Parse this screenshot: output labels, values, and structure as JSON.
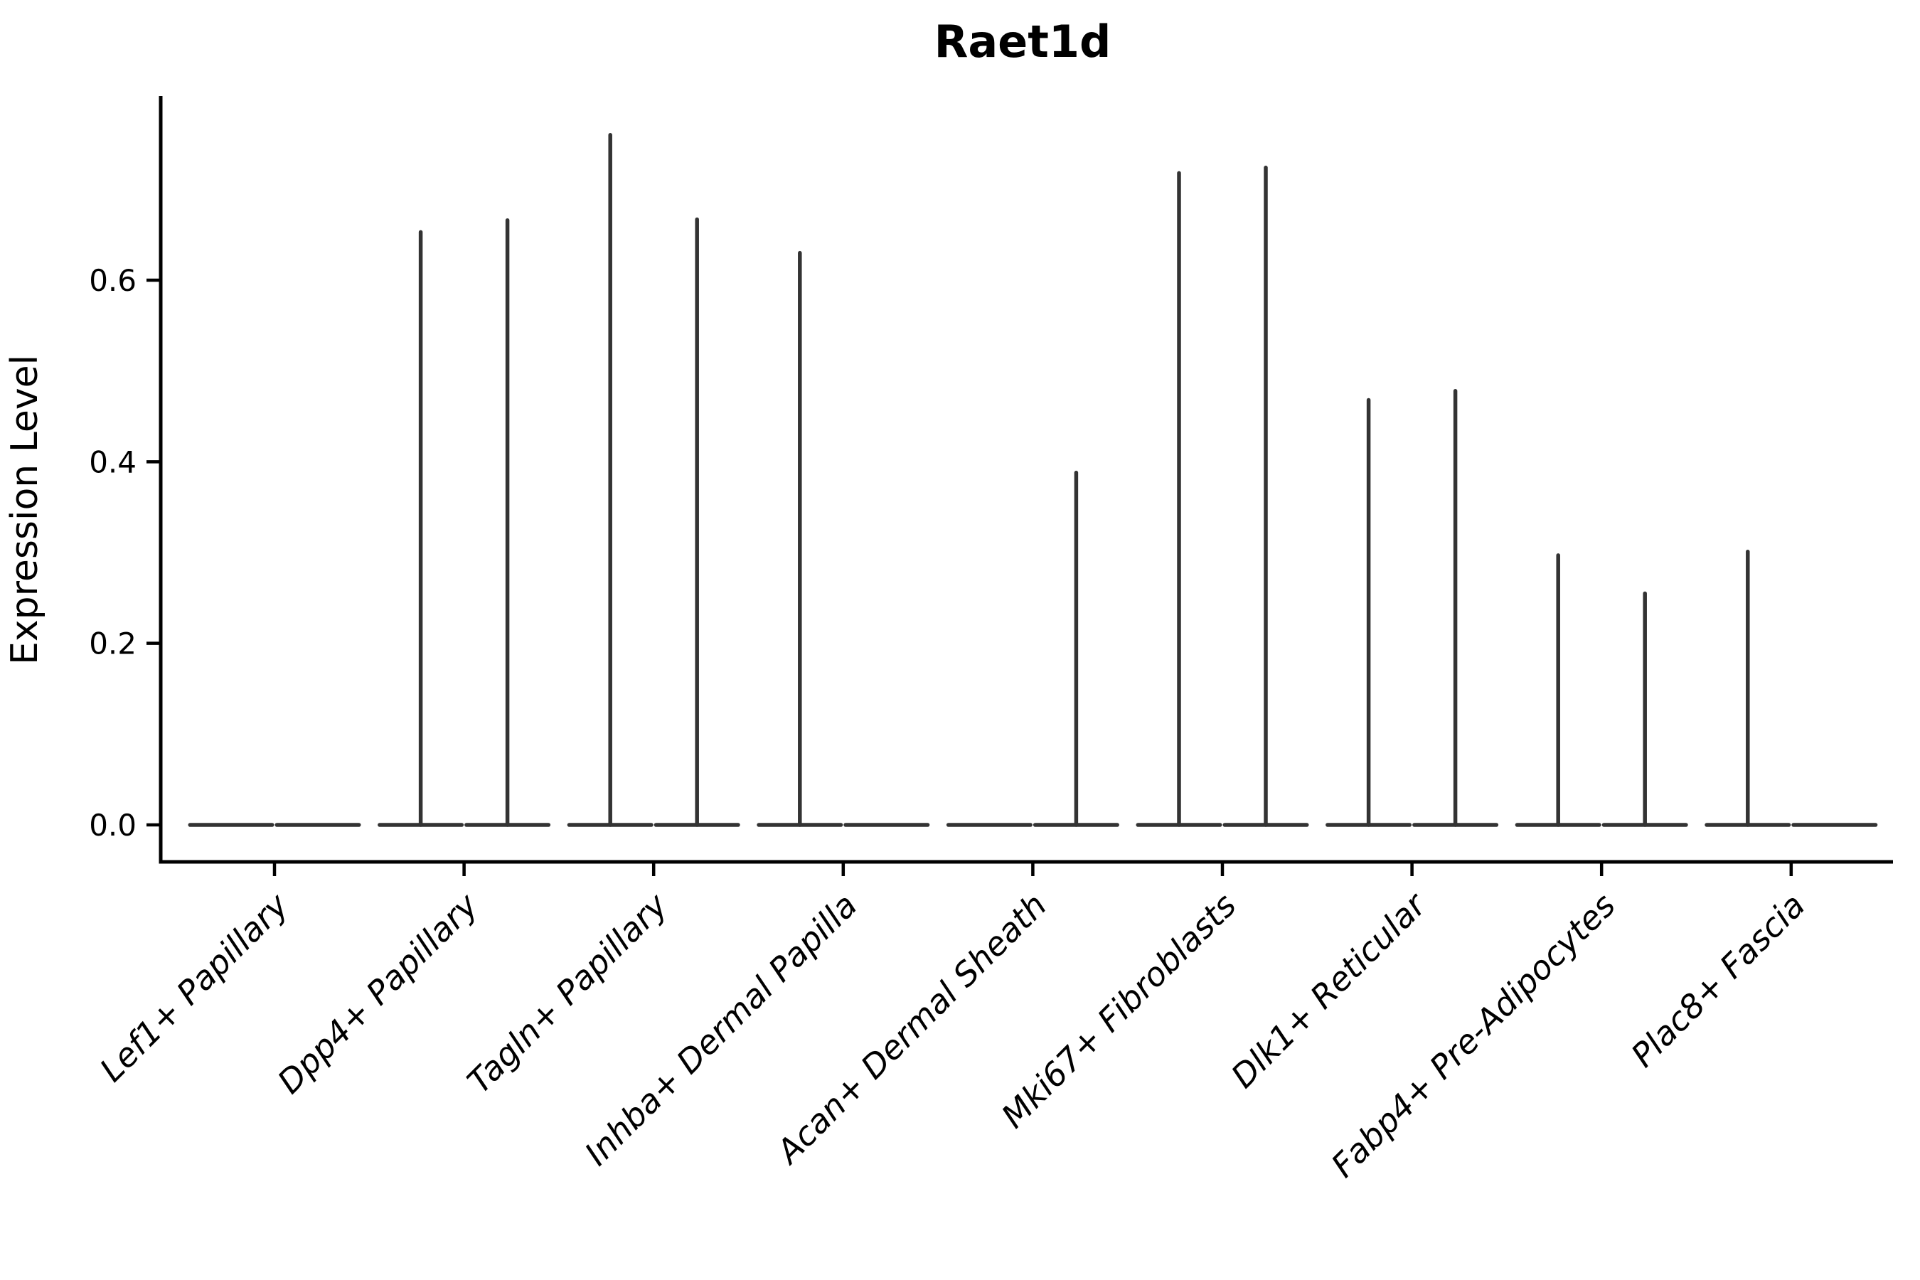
{
  "chart_data": {
    "type": "violin",
    "title": "Raet1d",
    "xlabel": "",
    "ylabel": "Expression Level",
    "categories": [
      "Lef1+ Papillary",
      "Dpp4+ Papillary",
      "Tagln+ Papillary",
      "Inhba+ Dermal Papilla",
      "Acan+ Dermal Sheath",
      "Mki67+ Fibroblasts",
      "Dlk1+ Reticular",
      "Fabp4+ Pre-Adipocytes",
      "Plac8+ Fascia"
    ],
    "violins_per_category": 2,
    "series": [
      {
        "name": "left-violin",
        "max_expression": [
          0,
          0.653,
          0.76,
          0.63,
          0,
          0.718,
          0.468,
          0.297,
          0.301
        ]
      },
      {
        "name": "right-violin",
        "max_expression": [
          0,
          0.666,
          0.667,
          0,
          0.388,
          0.724,
          0.478,
          0.255,
          0
        ]
      }
    ],
    "distribution_shape": "density concentrated at 0: wide flat base bar with thin spike rising to max value",
    "yticks": [
      0.0,
      0.2,
      0.4,
      0.6
    ],
    "ytick_labels": [
      "0.0",
      "0.2",
      "0.4",
      "0.6"
    ],
    "ylim": [
      -0.04,
      0.8
    ],
    "grid": false,
    "legend_position": "none",
    "violin_color": "#333333",
    "axis_color": "#000000",
    "background_color": "#ffffff"
  }
}
